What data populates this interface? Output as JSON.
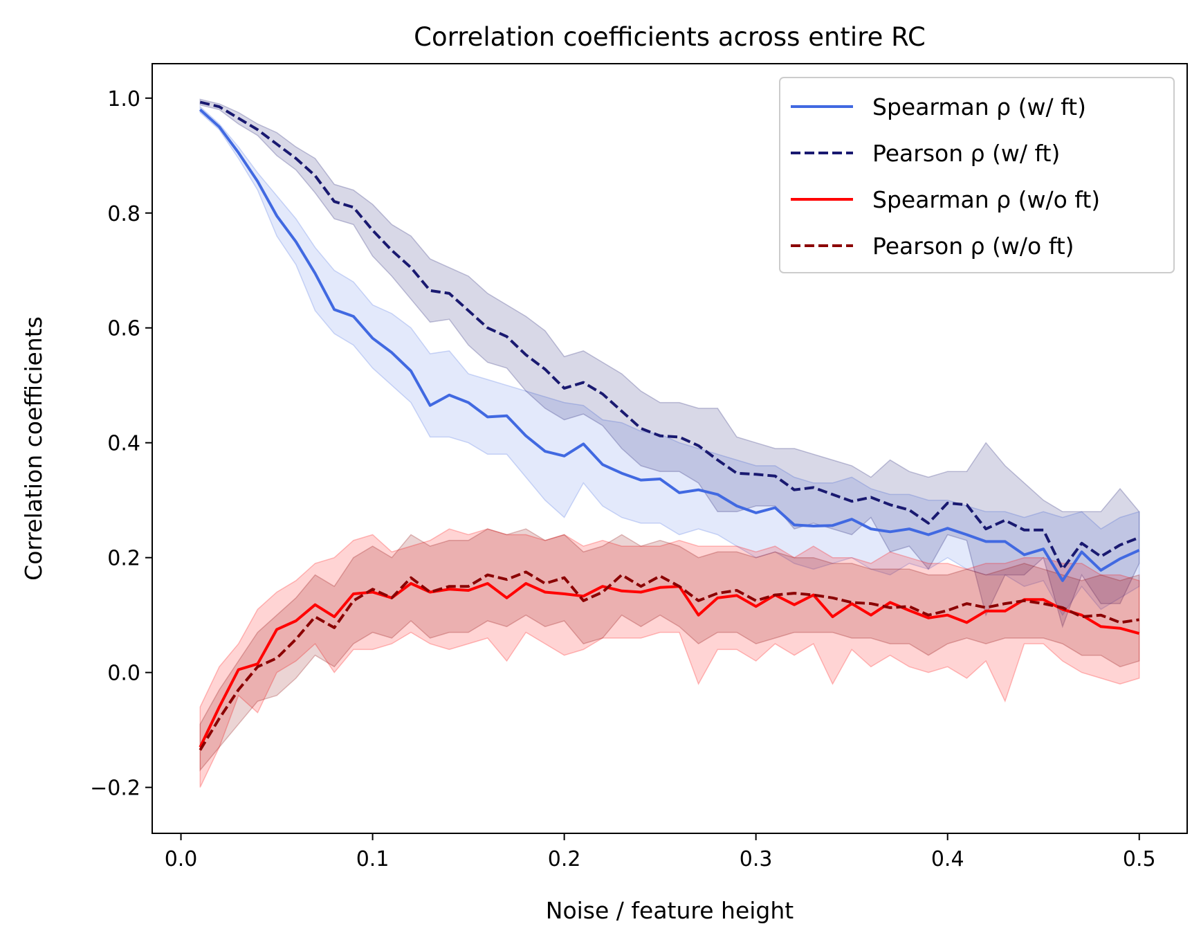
{
  "chart_data": {
    "type": "line",
    "title": "Correlation coefficients across entire RC",
    "xlabel": "Noise / feature height",
    "ylabel": "Correlation coefficients",
    "xlim": [
      -0.015,
      0.525
    ],
    "ylim": [
      -0.28,
      1.06
    ],
    "xticks": [
      0.0,
      0.1,
      0.2,
      0.3,
      0.4,
      0.5
    ],
    "xtick_labels": [
      "0.0",
      "0.1",
      "0.2",
      "0.3",
      "0.4",
      "0.5"
    ],
    "yticks": [
      -0.2,
      0.0,
      0.2,
      0.4,
      0.6,
      0.8,
      1.0
    ],
    "ytick_labels": [
      "−0.2",
      "0.0",
      "0.2",
      "0.4",
      "0.6",
      "0.8",
      "1.0"
    ],
    "grid": false,
    "legend_position": "top-right",
    "x": [
      0.01,
      0.02,
      0.03,
      0.04,
      0.05,
      0.06,
      0.07,
      0.08,
      0.09,
      0.1,
      0.11,
      0.12,
      0.13,
      0.14,
      0.15,
      0.16,
      0.17,
      0.18,
      0.19,
      0.2,
      0.21,
      0.22,
      0.23,
      0.24,
      0.25,
      0.26,
      0.27,
      0.28,
      0.29,
      0.3,
      0.31,
      0.32,
      0.33,
      0.34,
      0.35,
      0.36,
      0.37,
      0.38,
      0.39,
      0.4,
      0.41,
      0.42,
      0.43,
      0.44,
      0.45,
      0.46,
      0.47,
      0.48,
      0.49,
      0.5
    ],
    "series": [
      {
        "name": "Spearman ρ (w/ ft)",
        "color": "#4169e1",
        "dash": "solid",
        "band_color": "#4169e1",
        "values": [
          0.98,
          0.95,
          0.905,
          0.855,
          0.795,
          0.75,
          0.695,
          0.632,
          0.62,
          0.582,
          0.557,
          0.525,
          0.465,
          0.483,
          0.47,
          0.445,
          0.447,
          0.412,
          0.385,
          0.377,
          0.398,
          0.362,
          0.347,
          0.335,
          0.337,
          0.313,
          0.318,
          0.31,
          0.29,
          0.278,
          0.287,
          0.257,
          0.255,
          0.256,
          0.267,
          0.25,
          0.245,
          0.25,
          0.24,
          0.251,
          0.24,
          0.228,
          0.228,
          0.205,
          0.215,
          0.16,
          0.21,
          0.178,
          0.198,
          0.213
        ],
        "upper": [
          0.985,
          0.955,
          0.915,
          0.87,
          0.83,
          0.79,
          0.74,
          0.7,
          0.68,
          0.64,
          0.625,
          0.6,
          0.555,
          0.56,
          0.52,
          0.51,
          0.5,
          0.49,
          0.48,
          0.47,
          0.465,
          0.44,
          0.435,
          0.42,
          0.415,
          0.4,
          0.39,
          0.38,
          0.37,
          0.36,
          0.36,
          0.34,
          0.33,
          0.33,
          0.34,
          0.32,
          0.31,
          0.31,
          0.3,
          0.3,
          0.29,
          0.28,
          0.28,
          0.27,
          0.28,
          0.27,
          0.28,
          0.25,
          0.27,
          0.28
        ],
        "lower": [
          0.975,
          0.945,
          0.895,
          0.84,
          0.76,
          0.71,
          0.63,
          0.59,
          0.57,
          0.53,
          0.5,
          0.47,
          0.41,
          0.41,
          0.4,
          0.38,
          0.38,
          0.34,
          0.3,
          0.27,
          0.33,
          0.29,
          0.27,
          0.26,
          0.26,
          0.24,
          0.25,
          0.24,
          0.22,
          0.2,
          0.21,
          0.19,
          0.18,
          0.19,
          0.2,
          0.18,
          0.17,
          0.19,
          0.18,
          0.2,
          0.18,
          0.17,
          0.17,
          0.15,
          0.16,
          0.1,
          0.15,
          0.11,
          0.13,
          0.15
        ]
      },
      {
        "name": "Pearson ρ (w/ ft)",
        "color": "#191970",
        "dash": "dashed",
        "band_color": "#191970",
        "values": [
          0.993,
          0.985,
          0.965,
          0.945,
          0.92,
          0.895,
          0.865,
          0.82,
          0.81,
          0.77,
          0.735,
          0.705,
          0.665,
          0.66,
          0.63,
          0.6,
          0.585,
          0.553,
          0.528,
          0.495,
          0.505,
          0.485,
          0.455,
          0.425,
          0.412,
          0.41,
          0.395,
          0.37,
          0.347,
          0.345,
          0.342,
          0.318,
          0.322,
          0.31,
          0.298,
          0.305,
          0.292,
          0.283,
          0.26,
          0.295,
          0.292,
          0.25,
          0.265,
          0.248,
          0.248,
          0.18,
          0.225,
          0.202,
          0.222,
          0.235
        ],
        "upper": [
          0.998,
          0.99,
          0.975,
          0.955,
          0.94,
          0.915,
          0.895,
          0.85,
          0.84,
          0.815,
          0.78,
          0.76,
          0.72,
          0.705,
          0.69,
          0.66,
          0.64,
          0.62,
          0.595,
          0.55,
          0.56,
          0.54,
          0.52,
          0.49,
          0.47,
          0.47,
          0.46,
          0.46,
          0.41,
          0.4,
          0.39,
          0.39,
          0.38,
          0.37,
          0.36,
          0.34,
          0.37,
          0.35,
          0.34,
          0.35,
          0.35,
          0.4,
          0.36,
          0.33,
          0.3,
          0.28,
          0.28,
          0.28,
          0.32,
          0.28
        ],
        "lower": [
          0.988,
          0.98,
          0.955,
          0.935,
          0.9,
          0.875,
          0.835,
          0.79,
          0.78,
          0.725,
          0.69,
          0.65,
          0.61,
          0.615,
          0.57,
          0.54,
          0.53,
          0.49,
          0.46,
          0.44,
          0.45,
          0.43,
          0.39,
          0.36,
          0.35,
          0.35,
          0.33,
          0.28,
          0.28,
          0.29,
          0.29,
          0.25,
          0.26,
          0.25,
          0.24,
          0.27,
          0.21,
          0.22,
          0.18,
          0.24,
          0.23,
          0.1,
          0.17,
          0.17,
          0.2,
          0.08,
          0.17,
          0.12,
          0.12,
          0.19
        ]
      },
      {
        "name": "Spearman ρ (w/o ft)",
        "color": "#ff0000",
        "dash": "solid",
        "band_color": "#ff0000",
        "values": [
          -0.13,
          -0.06,
          0.005,
          0.015,
          0.075,
          0.09,
          0.118,
          0.097,
          0.137,
          0.14,
          0.13,
          0.155,
          0.14,
          0.145,
          0.143,
          0.155,
          0.13,
          0.155,
          0.14,
          0.137,
          0.133,
          0.15,
          0.142,
          0.14,
          0.148,
          0.15,
          0.1,
          0.13,
          0.134,
          0.115,
          0.135,
          0.118,
          0.135,
          0.097,
          0.12,
          0.1,
          0.122,
          0.108,
          0.095,
          0.1,
          0.087,
          0.107,
          0.107,
          0.127,
          0.127,
          0.11,
          0.1,
          0.08,
          0.077,
          0.068
        ],
        "upper": [
          -0.06,
          0.01,
          0.05,
          0.11,
          0.14,
          0.16,
          0.19,
          0.2,
          0.23,
          0.24,
          0.21,
          0.22,
          0.23,
          0.25,
          0.24,
          0.25,
          0.24,
          0.24,
          0.23,
          0.24,
          0.22,
          0.23,
          0.22,
          0.22,
          0.22,
          0.23,
          0.22,
          0.22,
          0.22,
          0.21,
          0.22,
          0.2,
          0.22,
          0.2,
          0.2,
          0.19,
          0.21,
          0.2,
          0.19,
          0.19,
          0.18,
          0.19,
          0.19,
          0.2,
          0.2,
          0.19,
          0.19,
          0.17,
          0.17,
          0.16
        ],
        "lower": [
          -0.2,
          -0.13,
          -0.04,
          -0.07,
          0.0,
          0.02,
          0.05,
          0.0,
          0.04,
          0.04,
          0.05,
          0.07,
          0.05,
          0.04,
          0.05,
          0.06,
          0.02,
          0.07,
          0.05,
          0.03,
          0.04,
          0.06,
          0.06,
          0.06,
          0.07,
          0.07,
          -0.02,
          0.04,
          0.04,
          0.02,
          0.05,
          0.03,
          0.05,
          -0.02,
          0.04,
          0.01,
          0.03,
          0.01,
          0.0,
          0.01,
          -0.01,
          0.02,
          -0.05,
          0.05,
          0.05,
          0.02,
          0.0,
          -0.01,
          -0.02,
          -0.01
        ]
      },
      {
        "name": "Pearson ρ (w/o ft)",
        "color": "#8b0000",
        "dash": "dashed",
        "band_color": "#8b0000",
        "values": [
          -0.135,
          -0.08,
          -0.03,
          0.01,
          0.025,
          0.058,
          0.097,
          0.078,
          0.125,
          0.145,
          0.13,
          0.165,
          0.14,
          0.15,
          0.15,
          0.17,
          0.162,
          0.175,
          0.155,
          0.165,
          0.125,
          0.14,
          0.17,
          0.15,
          0.168,
          0.15,
          0.125,
          0.138,
          0.143,
          0.125,
          0.135,
          0.138,
          0.135,
          0.13,
          0.122,
          0.12,
          0.113,
          0.115,
          0.1,
          0.108,
          0.12,
          0.113,
          0.12,
          0.125,
          0.12,
          0.113,
          0.097,
          0.1,
          0.087,
          0.092
        ],
        "upper": [
          -0.09,
          -0.03,
          0.02,
          0.07,
          0.1,
          0.13,
          0.17,
          0.15,
          0.2,
          0.22,
          0.2,
          0.24,
          0.22,
          0.23,
          0.23,
          0.25,
          0.24,
          0.25,
          0.23,
          0.24,
          0.21,
          0.22,
          0.24,
          0.22,
          0.23,
          0.22,
          0.2,
          0.21,
          0.21,
          0.2,
          0.21,
          0.2,
          0.2,
          0.19,
          0.19,
          0.18,
          0.18,
          0.18,
          0.17,
          0.17,
          0.18,
          0.17,
          0.18,
          0.19,
          0.18,
          0.17,
          0.16,
          0.17,
          0.16,
          0.17
        ],
        "lower": [
          -0.17,
          -0.13,
          -0.09,
          -0.05,
          -0.04,
          -0.01,
          0.03,
          0.01,
          0.05,
          0.07,
          0.06,
          0.09,
          0.06,
          0.07,
          0.07,
          0.09,
          0.08,
          0.1,
          0.08,
          0.09,
          0.05,
          0.06,
          0.1,
          0.08,
          0.1,
          0.08,
          0.05,
          0.07,
          0.07,
          0.05,
          0.06,
          0.07,
          0.07,
          0.07,
          0.06,
          0.06,
          0.05,
          0.05,
          0.03,
          0.05,
          0.06,
          0.05,
          0.06,
          0.06,
          0.06,
          0.05,
          0.03,
          0.03,
          0.01,
          0.02
        ]
      }
    ]
  }
}
